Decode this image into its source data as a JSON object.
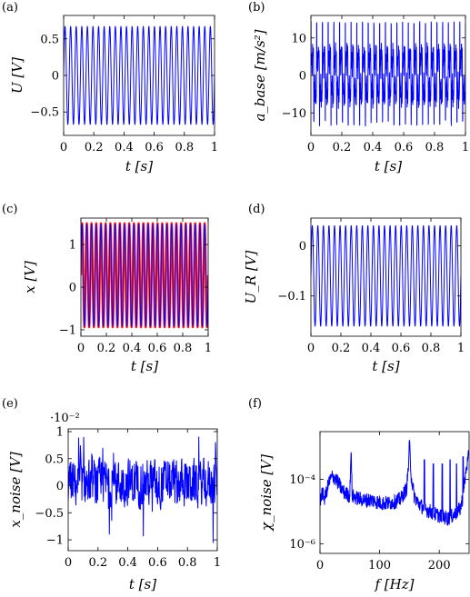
{
  "figure": {
    "colors": {
      "blue": "#0000ff",
      "red": "#ff2020",
      "axis": "#000000"
    }
  },
  "chart_data": [
    {
      "panel": "(a)",
      "type": "line",
      "xlabel": "t [s]",
      "ylabel": "U [V]",
      "xlim": [
        0,
        1
      ],
      "ylim": [
        -0.82,
        0.82
      ],
      "xticks": [
        {
          "v": 0,
          "label": "0"
        },
        {
          "v": 0.2,
          "label": "0.2"
        },
        {
          "v": 0.4,
          "label": "0.4"
        },
        {
          "v": 0.6,
          "label": "0.6"
        },
        {
          "v": 0.8,
          "label": "0.8"
        },
        {
          "v": 1,
          "label": "1"
        }
      ],
      "yticks": [
        {
          "v": -0.5,
          "label": "−0.5"
        },
        {
          "v": 0,
          "label": "0"
        },
        {
          "v": 0.5,
          "label": "0.5"
        }
      ],
      "series": [
        {
          "color": "#0000ff",
          "signal": "sine",
          "amplitude": 0.67,
          "offset": 0,
          "frequency_hz": 27
        }
      ]
    },
    {
      "panel": "(b)",
      "type": "line",
      "xlabel": "t [s]",
      "ylabel": "a_base [m/s²]",
      "xlim": [
        0,
        1
      ],
      "ylim": [
        -16,
        16
      ],
      "xticks": [
        {
          "v": 0,
          "label": "0"
        },
        {
          "v": 0.2,
          "label": "0.2"
        },
        {
          "v": 0.4,
          "label": "0.4"
        },
        {
          "v": 0.6,
          "label": "0.6"
        },
        {
          "v": 0.8,
          "label": "0.8"
        },
        {
          "v": 1,
          "label": "1"
        }
      ],
      "yticks": [
        {
          "v": -10,
          "label": "−10"
        },
        {
          "v": 0,
          "label": "0"
        },
        {
          "v": 10,
          "label": "10"
        }
      ],
      "series": [
        {
          "color": "#0000ff",
          "signal": "spiky",
          "amplitude": 14,
          "offset": 0,
          "frequency_hz": 27
        }
      ]
    },
    {
      "panel": "(c)",
      "type": "line",
      "xlabel": "t [s]",
      "ylabel": "x [V]",
      "xlim": [
        0,
        1
      ],
      "ylim": [
        -1.15,
        1.62
      ],
      "xticks": [
        {
          "v": 0,
          "label": "0"
        },
        {
          "v": 0.2,
          "label": "0.2"
        },
        {
          "v": 0.4,
          "label": "0.4"
        },
        {
          "v": 0.6,
          "label": "0.6"
        },
        {
          "v": 0.8,
          "label": "0.8"
        },
        {
          "v": 1,
          "label": "1"
        }
      ],
      "yticks": [
        {
          "v": -1,
          "label": "−1"
        },
        {
          "v": 0,
          "label": "0"
        },
        {
          "v": 1,
          "label": "1"
        }
      ],
      "series": [
        {
          "color": "#ff2020",
          "signal": "sine",
          "amplitude": 1.22,
          "offset": 0.28,
          "frequency_hz": 27,
          "width": 2.4
        },
        {
          "color": "#0000ff",
          "signal": "sine",
          "amplitude": 1.2,
          "offset": 0.28,
          "frequency_hz": 27,
          "width": 0.9
        }
      ]
    },
    {
      "panel": "(d)",
      "type": "line",
      "xlabel": "t [s]",
      "ylabel": "U_R [V]",
      "xlim": [
        0,
        1
      ],
      "ylim": [
        -0.18,
        0.055
      ],
      "xticks": [
        {
          "v": 0,
          "label": "0"
        },
        {
          "v": 0.2,
          "label": "0.2"
        },
        {
          "v": 0.4,
          "label": "0.4"
        },
        {
          "v": 0.6,
          "label": "0.6"
        },
        {
          "v": 0.8,
          "label": "0.8"
        },
        {
          "v": 1,
          "label": "1"
        }
      ],
      "yticks": [
        {
          "v": -0.1,
          "label": "−0.1"
        },
        {
          "v": 0,
          "label": "0"
        }
      ],
      "series": [
        {
          "color": "#0000ff",
          "signal": "sine",
          "amplitude": 0.1,
          "offset": -0.06,
          "frequency_hz": 27
        }
      ]
    },
    {
      "panel": "(e)",
      "type": "line",
      "xlabel": "t [s]",
      "ylabel": "x_noise [V]",
      "multiplier": "·10⁻²",
      "xlim": [
        0,
        1
      ],
      "ylim": [
        -1.2,
        1.05
      ],
      "xticks": [
        {
          "v": 0,
          "label": "0"
        },
        {
          "v": 0.2,
          "label": "0.2"
        },
        {
          "v": 0.4,
          "label": "0.4"
        },
        {
          "v": 0.6,
          "label": "0.6"
        },
        {
          "v": 0.8,
          "label": "0.8"
        },
        {
          "v": 1,
          "label": "1"
        }
      ],
      "yticks": [
        {
          "v": -1,
          "label": "−1"
        },
        {
          "v": -0.5,
          "label": "−0.5"
        },
        {
          "v": 0,
          "label": "0"
        },
        {
          "v": 0.5,
          "label": "0.5"
        },
        {
          "v": 1,
          "label": "1"
        }
      ],
      "series": [
        {
          "color": "#0000ff",
          "signal": "noise",
          "amplitude": 0.4,
          "offset": 0.05,
          "n_points": 500
        }
      ]
    },
    {
      "panel": "(f)",
      "type": "line",
      "yscale": "log",
      "xlabel": "f [Hz]",
      "ylabel": "χ_noise [V]",
      "xlim": [
        0,
        250
      ],
      "ylim": [
        5e-07,
        0.003
      ],
      "xticks": [
        {
          "v": 0,
          "label": "0"
        },
        {
          "v": 100,
          "label": "100"
        },
        {
          "v": 200,
          "label": "200"
        }
      ],
      "yticks": [
        {
          "v": 0.0001,
          "label": "10⁻⁴"
        },
        {
          "v": 1e-06,
          "label": "10⁻⁶"
        }
      ],
      "series": [
        {
          "color": "#0000ff",
          "signal": "spectrum",
          "f": [
            0,
            3,
            8,
            12,
            15,
            20,
            25,
            28,
            32,
            36,
            40,
            45,
            50,
            52,
            54,
            58,
            65,
            75,
            85,
            95,
            105,
            115,
            125,
            135,
            140,
            145,
            148,
            150,
            153,
            158,
            165,
            175,
            185,
            195,
            205,
            215,
            225,
            235,
            240,
            245,
            250
          ],
          "v": [
            2e-05,
            4e-05,
            2.5e-05,
            5e-05,
            8e-05,
            0.00012,
            0.00011,
            9e-05,
            7e-05,
            5e-05,
            4e-05,
            3.5e-05,
            3e-05,
            0.0009,
            3e-05,
            2.8e-05,
            2.5e-05,
            2.2e-05,
            2.3e-05,
            2e-05,
            1.8e-05,
            1.8e-05,
            2e-05,
            2.4e-05,
            3.5e-05,
            5e-05,
            0.0002,
            0.0013,
            0.00012,
            3e-05,
            1.8e-05,
            1.2e-05,
            1e-05,
            8e-06,
            7e-06,
            6e-06,
            8e-06,
            1.2e-05,
            3e-05,
            0.0002,
            0.0006
          ],
          "spikes": [
            {
              "f": 175,
              "v": 0.0004
            },
            {
              "f": 190,
              "v": 0.0003
            },
            {
              "f": 205,
              "v": 0.0003
            },
            {
              "f": 218,
              "v": 0.0004
            },
            {
              "f": 229,
              "v": 0.0003
            },
            {
              "f": 240,
              "v": 0.0005
            }
          ]
        }
      ]
    }
  ]
}
